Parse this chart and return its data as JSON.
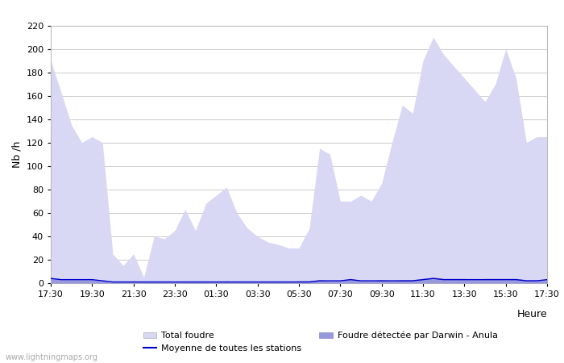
{
  "xlabel": "Heure",
  "ylabel": "Nb /h",
  "xlim_labels": [
    "17:30",
    "19:30",
    "21:30",
    "23:30",
    "01:30",
    "03:30",
    "05:30",
    "07:30",
    "09:30",
    "11:30",
    "13:30",
    "15:30",
    "17:30"
  ],
  "ylim": [
    0,
    220
  ],
  "yticks": [
    0,
    20,
    40,
    60,
    80,
    100,
    120,
    140,
    160,
    180,
    200,
    220
  ],
  "background_color": "#ffffff",
  "plot_bg_color": "#ffffff",
  "grid_color": "#cccccc",
  "total_foudre_color": "#d8d8f5",
  "detected_color": "#9898dd",
  "moyenne_color": "#0000cc",
  "watermark": "www.lightningmaps.org",
  "total_foudre": [
    190,
    163,
    135,
    120,
    125,
    120,
    25,
    15,
    25,
    5,
    40,
    38,
    45,
    63,
    45,
    68,
    75,
    82,
    60,
    47,
    40,
    35,
    33,
    30,
    30,
    47,
    115,
    110,
    70,
    70,
    75,
    70,
    85,
    120,
    152,
    145,
    190,
    210,
    195,
    185,
    175,
    165,
    155,
    170,
    200,
    175,
    120,
    125,
    125
  ],
  "detected": [
    5,
    3,
    3,
    3,
    3,
    2,
    1,
    1,
    2,
    1,
    1,
    1,
    1,
    1,
    1,
    1,
    1,
    2,
    1,
    1,
    1,
    1,
    1,
    1,
    2,
    2,
    3,
    2,
    2,
    4,
    2,
    2,
    3,
    2,
    3,
    3,
    4,
    5,
    4,
    4,
    4,
    3,
    4,
    4,
    4,
    4,
    3,
    3,
    3
  ],
  "moyenne": [
    4,
    3,
    3,
    3,
    3,
    2,
    1,
    1,
    1,
    1,
    1,
    1,
    1,
    1,
    1,
    1,
    1,
    1,
    1,
    1,
    1,
    1,
    1,
    1,
    1,
    1,
    2,
    2,
    2,
    3,
    2,
    2,
    2,
    2,
    2,
    2,
    3,
    4,
    3,
    3,
    3,
    3,
    3,
    3,
    3,
    3,
    2,
    2,
    3
  ]
}
